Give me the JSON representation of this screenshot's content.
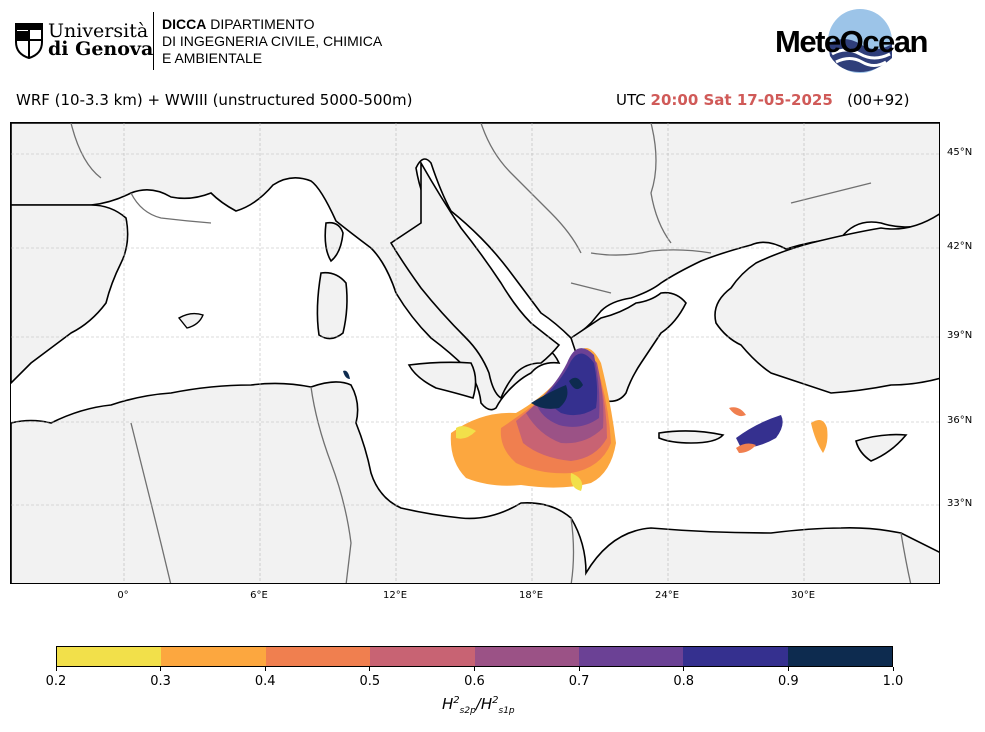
{
  "header": {
    "unige_line1": "Università",
    "unige_line2": "di Genova",
    "dicca_bold": "DICCA",
    "dicca_line1": "DIPARTIMENTO",
    "dicca_line2": "DI INGEGNERIA CIVILE, CHIMICA",
    "dicca_line3": "E AMBIENTALE",
    "meteocean": "MeteOcean"
  },
  "subtitle": {
    "model": "WRF (10-3.3 km) + WWIII (unstructured 5000-500m)",
    "utc": "UTC",
    "time": "20:00 Sat 17-05-2025",
    "lead": "(00+92)"
  },
  "map": {
    "lat_labels": [
      "45°N",
      "42°N",
      "39°N",
      "36°N",
      "33°N"
    ],
    "lon_labels": [
      "0°",
      "6°E",
      "12°E",
      "18°E",
      "24°E",
      "30°E"
    ],
    "land_color": "#f2f2f2",
    "sea_color": "#ffffff"
  },
  "colorbar": {
    "ticks": [
      "0.2",
      "0.3",
      "0.4",
      "0.5",
      "0.6",
      "0.7",
      "0.8",
      "0.9",
      "1.0"
    ],
    "colors": [
      "#f2e04a",
      "#fca73f",
      "#f07f4f",
      "#c86373",
      "#9b5286",
      "#6b4195",
      "#35308f",
      "#0d2b4f"
    ],
    "label_base": "H",
    "label_sub1": "s2p",
    "label_sub2": "s1p"
  }
}
